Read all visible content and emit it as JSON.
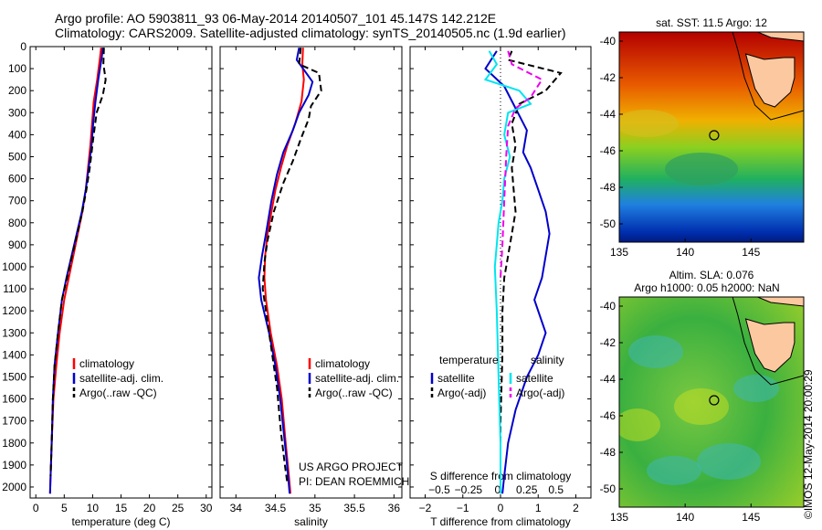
{
  "header": {
    "line1": "Argo profile: AO 5903811_93 06-May-2014 20140507_101 45.147S 142.212E",
    "line2": "Climatology: CARS2009. Satellite-adjusted climatology: synTS_20140505.nc (1.9d earlier)"
  },
  "stamp": "©IMOS 12-May-2014 20:00:29",
  "colors": {
    "climatology": "#ff0000",
    "satellite": "#0000cc",
    "argo": "#000000",
    "sal_sat": "#00e5ee",
    "sal_argo": "#ee00ee"
  },
  "chart_data": [
    {
      "id": "temperature",
      "type": "line",
      "xlabel": "temperature (deg C)",
      "ylabel": "",
      "xlim": [
        -1,
        31
      ],
      "ylim": [
        2050,
        0
      ],
      "xticks": [
        0,
        5,
        10,
        15,
        20,
        25,
        30
      ],
      "yticks": [
        0,
        100,
        200,
        300,
        400,
        500,
        600,
        700,
        800,
        900,
        1000,
        1100,
        1200,
        1300,
        1400,
        1500,
        1600,
        1700,
        1800,
        1900,
        2000
      ],
      "legend": {
        "position": "lower-center",
        "entries": [
          "climatology",
          "satellite-adj. clim.",
          "Argo(..raw -QC)"
        ]
      },
      "series": [
        {
          "name": "climatology",
          "style": "solid",
          "color": "#ff0000",
          "x": [
            11.5,
            11.3,
            10.8,
            10.2,
            9.9,
            9.6,
            9.2,
            8.8,
            8.2,
            7.4,
            6.6,
            5.8,
            5.0,
            4.2,
            3.6,
            3.1,
            2.8,
            2.6,
            2.5
          ],
          "y": [
            5,
            50,
            150,
            250,
            350,
            450,
            550,
            650,
            750,
            850,
            950,
            1050,
            1150,
            1300,
            1450,
            1600,
            1800,
            1950,
            2030
          ]
        },
        {
          "name": "satellite-adj. clim.",
          "style": "solid",
          "color": "#0000cc",
          "x": [
            11.8,
            11.6,
            11.0,
            10.5,
            10.1,
            9.8,
            9.3,
            8.8,
            8.1,
            7.2,
            6.3,
            5.4,
            4.6,
            3.9,
            3.3,
            3.0,
            2.8,
            2.6,
            2.5
          ],
          "y": [
            5,
            50,
            150,
            250,
            350,
            450,
            550,
            650,
            750,
            850,
            950,
            1050,
            1150,
            1300,
            1450,
            1600,
            1800,
            1950,
            2030
          ]
        },
        {
          "name": "Argo(..raw -QC)",
          "style": "dashed",
          "color": "#000000",
          "x": [
            12.0,
            11.9,
            12.3,
            11.8,
            10.7,
            10.1,
            9.5,
            8.9,
            8.2,
            7.3,
            6.4,
            5.5,
            4.6,
            3.9,
            3.3,
            3.0,
            2.8,
            2.6
          ],
          "y": [
            5,
            80,
            150,
            220,
            300,
            420,
            550,
            650,
            750,
            850,
            950,
            1050,
            1150,
            1300,
            1450,
            1600,
            1800,
            1950
          ]
        }
      ]
    },
    {
      "id": "salinity",
      "type": "line",
      "xlabel": "salinity",
      "ylabel": "",
      "xlim": [
        33.8,
        36.1
      ],
      "ylim": [
        2050,
        0
      ],
      "xticks": [
        34,
        34.5,
        35,
        35.5,
        36
      ],
      "legend": {
        "position": "lower-right",
        "entries": [
          "climatology",
          "satellite-adj. clim.",
          "Argo(..raw -QC)"
        ]
      },
      "annotation": [
        "US ARGO PROJECT",
        "PI: DEAN ROEMMICH"
      ],
      "series": [
        {
          "name": "climatology",
          "style": "solid",
          "color": "#ff0000",
          "x": [
            34.85,
            34.84,
            34.86,
            34.83,
            34.75,
            34.65,
            34.57,
            34.5,
            34.45,
            34.4,
            34.37,
            34.36,
            34.38,
            34.44,
            34.52,
            34.58,
            34.63,
            34.67,
            34.69
          ],
          "y": [
            5,
            80,
            150,
            250,
            350,
            450,
            550,
            650,
            750,
            850,
            950,
            1050,
            1150,
            1300,
            1450,
            1600,
            1800,
            1950,
            2030
          ]
        },
        {
          "name": "satellite-adj. clim.",
          "style": "solid",
          "color": "#0000cc",
          "x": [
            34.8,
            34.77,
            34.85,
            34.97,
            34.92,
            34.8,
            34.72,
            34.6,
            34.52,
            34.45,
            34.38,
            34.33,
            34.29,
            34.32,
            34.42,
            34.5,
            34.56,
            34.62,
            34.66,
            34.68
          ],
          "y": [
            5,
            60,
            100,
            160,
            220,
            300,
            380,
            480,
            580,
            700,
            850,
            950,
            1050,
            1150,
            1300,
            1450,
            1600,
            1800,
            1950,
            2030
          ]
        },
        {
          "name": "Argo(..raw -QC)",
          "style": "dashed",
          "color": "#000000",
          "x": [
            34.82,
            34.8,
            35.05,
            35.08,
            34.95,
            34.92,
            34.82,
            34.72,
            34.6,
            34.48,
            34.4,
            34.36,
            34.34,
            34.4,
            34.46,
            34.52,
            34.57,
            34.62,
            34.65
          ],
          "y": [
            5,
            80,
            120,
            200,
            270,
            330,
            420,
            520,
            620,
            750,
            880,
            980,
            1100,
            1250,
            1400,
            1550,
            1750,
            1900,
            1980
          ]
        }
      ]
    },
    {
      "id": "difference",
      "type": "line",
      "xlabel": "T difference from climatology",
      "x2label": "S difference from climatology",
      "xlim": [
        -2.4,
        2.4
      ],
      "ylim": [
        2050,
        0
      ],
      "xticks": [
        -2,
        -1,
        0,
        1,
        2
      ],
      "xticklabels": [
        "−2",
        "−1",
        "0",
        "1",
        "2"
      ],
      "x2ticks": [
        -2,
        -1,
        0,
        1,
        2
      ],
      "x2ticklabels": [
        "−0.5",
        "−0.25",
        "0",
        "0.25",
        "0.5"
      ],
      "legend": {
        "position": "lower-center",
        "groups": [
          {
            "title": "temperature",
            "entries": [
              "satellite",
              "Argo(-adj)"
            ]
          },
          {
            "title": "salinity",
            "entries": [
              "satellite",
              "Argo(-adj)"
            ]
          }
        ]
      },
      "series": [
        {
          "name": "temperature satellite",
          "style": "solid",
          "color": "#0000cc",
          "x": [
            -0.1,
            -0.4,
            0.1,
            0.4,
            0.7,
            0.6,
            0.8,
            1.0,
            1.2,
            1.3,
            1.2,
            1.1,
            0.9,
            1.2,
            1.0,
            0.7,
            0.4,
            0.2,
            0.1,
            0.05
          ],
          "y": [
            20,
            100,
            180,
            280,
            380,
            480,
            550,
            650,
            750,
            850,
            950,
            1050,
            1150,
            1300,
            1400,
            1500,
            1650,
            1800,
            1950,
            2030
          ]
        },
        {
          "name": "temperature Argo(-adj)",
          "style": "dashed",
          "color": "#000000",
          "x": [
            0.3,
            0.2,
            1.6,
            1.2,
            0.5,
            0.3,
            0.4,
            0.3,
            0.35,
            0.4,
            0.3,
            0.2,
            0.1,
            0.05,
            0.05,
            0.0,
            0.0
          ],
          "y": [
            20,
            60,
            120,
            200,
            260,
            350,
            450,
            550,
            650,
            750,
            850,
            950,
            1050,
            1200,
            1400,
            1700,
            1950
          ]
        },
        {
          "name": "salinity satellite",
          "style": "solid",
          "color": "#00e5ee",
          "x": [
            -0.3,
            -0.1,
            -0.4,
            0.5,
            0.8,
            0.2,
            0.1,
            0.25,
            0.1,
            0.05,
            -0.05,
            -0.1,
            -0.15,
            -0.1,
            -0.05,
            0.0,
            0.0
          ],
          "y": [
            20,
            80,
            150,
            200,
            260,
            300,
            400,
            500,
            600,
            700,
            800,
            900,
            1000,
            1200,
            1500,
            1800,
            2030
          ]
        },
        {
          "name": "salinity Argo(-adj)",
          "style": "dashed",
          "color": "#ee00ee",
          "x": [
            0.2,
            0.3,
            1.1,
            0.8,
            0.4,
            0.2,
            0.15,
            0.1,
            0.05,
            0.0
          ],
          "y": [
            20,
            80,
            150,
            230,
            280,
            360,
            500,
            700,
            900,
            1050
          ]
        }
      ]
    }
  ],
  "maps": [
    {
      "id": "sst-map",
      "title": "sat. SST: 11.5 Argo: 12",
      "xlim": [
        135,
        149
      ],
      "ylim": [
        -51,
        -39.5
      ],
      "xticks": [
        135,
        140,
        145
      ],
      "yticks": [
        -40,
        -42,
        -44,
        -46,
        -48,
        -50
      ],
      "marker": {
        "lon": 142.2,
        "lat": -45.15
      }
    },
    {
      "id": "sla-map",
      "title": "Altim. SLA: 0.076",
      "subtitle": "Argo h1000: 0.05 h2000: NaN",
      "xlim": [
        135,
        149
      ],
      "ylim": [
        -51,
        -39.5
      ],
      "xticks": [
        135,
        140,
        145
      ],
      "yticks": [
        -40,
        -42,
        -44,
        -46,
        -48,
        -50
      ],
      "marker": {
        "lon": 142.2,
        "lat": -45.15
      }
    }
  ]
}
